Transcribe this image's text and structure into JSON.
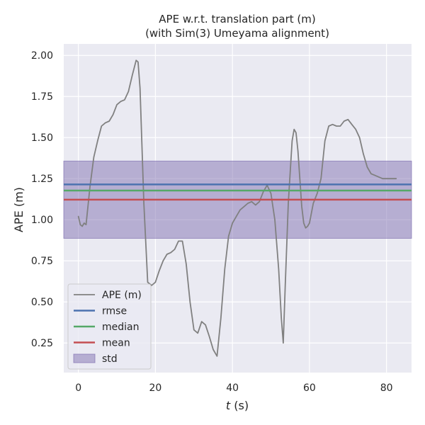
{
  "chart_data": {
    "type": "line",
    "title_line1": "APE w.r.t. translation part (m)",
    "title_line2": "(with Sim(3) Umeyama alignment)",
    "xlabel_var": "t",
    "xlabel_unit": " (s)",
    "ylabel": "APE (m)",
    "xlim": [
      -3.8,
      86.5
    ],
    "ylim": [
      0.07,
      2.07
    ],
    "xticks": [
      0,
      20,
      40,
      60,
      80
    ],
    "yticks": [
      0.25,
      0.5,
      0.75,
      1.0,
      1.25,
      1.5,
      1.75,
      2.0
    ],
    "ytick_labels": [
      "0.25",
      "0.50",
      "0.75",
      "1.00",
      "1.25",
      "1.50",
      "1.75",
      "2.00"
    ],
    "grid": true,
    "legend_position": "lower-left",
    "series": [
      {
        "name": "APE (m)",
        "color": "#808080",
        "x": [
          0.0,
          0.5,
          1.0,
          1.5,
          2.0,
          3.0,
          4.0,
          5.0,
          6.0,
          7.0,
          8.0,
          9.0,
          10.0,
          11.0,
          12.0,
          13.0,
          14.0,
          15.0,
          15.5,
          16.0,
          16.5,
          17.0,
          18.0,
          19.0,
          20.0,
          21.0,
          22.0,
          23.0,
          24.0,
          25.0,
          26.0,
          27.0,
          28.0,
          29.0,
          30.0,
          31.0,
          32.0,
          33.0,
          34.0,
          35.0,
          36.0,
          37.0,
          38.0,
          39.0,
          40.0,
          41.0,
          42.0,
          43.0,
          44.0,
          45.0,
          46.0,
          47.0,
          48.0,
          49.0,
          50.0,
          51.0,
          52.0,
          52.7,
          53.2,
          53.7,
          54.5,
          55.5,
          56.0,
          56.5,
          57.0,
          57.5,
          58.0,
          58.5,
          59.0,
          59.5,
          60.0,
          61.0,
          62.0,
          63.0,
          64.0,
          65.0,
          66.0,
          67.0,
          68.0,
          69.0,
          70.0,
          71.0,
          72.0,
          73.0,
          74.0,
          75.0,
          76.0,
          77.0,
          78.0,
          79.0,
          80.0,
          81.0,
          82.5
        ],
        "values": [
          1.02,
          0.97,
          0.96,
          0.98,
          0.97,
          1.2,
          1.38,
          1.48,
          1.57,
          1.59,
          1.6,
          1.64,
          1.7,
          1.72,
          1.73,
          1.78,
          1.88,
          1.97,
          1.96,
          1.8,
          1.45,
          1.1,
          0.62,
          0.6,
          0.62,
          0.69,
          0.75,
          0.79,
          0.8,
          0.82,
          0.87,
          0.87,
          0.73,
          0.5,
          0.33,
          0.31,
          0.38,
          0.36,
          0.29,
          0.21,
          0.17,
          0.4,
          0.7,
          0.9,
          0.98,
          1.02,
          1.06,
          1.08,
          1.1,
          1.11,
          1.09,
          1.11,
          1.17,
          1.21,
          1.16,
          1.0,
          0.7,
          0.4,
          0.25,
          0.6,
          1.1,
          1.48,
          1.55,
          1.53,
          1.42,
          1.25,
          1.08,
          0.98,
          0.95,
          0.96,
          0.98,
          1.1,
          1.16,
          1.25,
          1.48,
          1.57,
          1.58,
          1.57,
          1.57,
          1.6,
          1.61,
          1.58,
          1.55,
          1.5,
          1.4,
          1.32,
          1.28,
          1.27,
          1.26,
          1.25,
          1.25,
          1.25,
          1.25
        ]
      },
      {
        "name": "rmse",
        "color": "#4c72b0",
        "value": 1.215
      },
      {
        "name": "median",
        "color": "#55a868",
        "value": 1.178
      },
      {
        "name": "mean",
        "color": "#c44e52",
        "value": 1.122
      },
      {
        "name": "std",
        "color": "#8172b2",
        "lower": 0.887,
        "upper": 1.357
      }
    ]
  }
}
